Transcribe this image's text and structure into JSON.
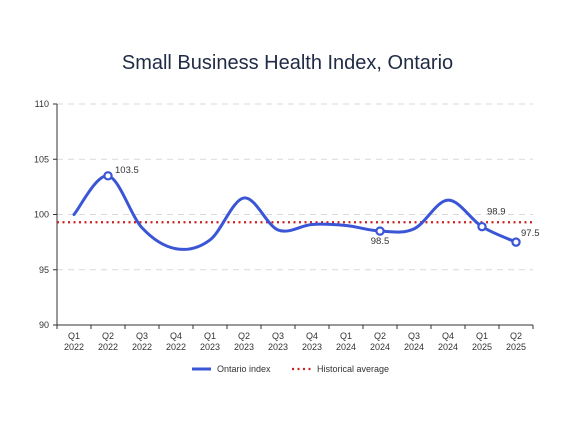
{
  "chart_data": {
    "type": "line",
    "title": "Small Business Health Index, Ontario",
    "xlabel": "",
    "ylabel": "",
    "categories": [
      [
        "Q1",
        "2022"
      ],
      [
        "Q2",
        "2022"
      ],
      [
        "Q3",
        "2022"
      ],
      [
        "Q4",
        "2022"
      ],
      [
        "Q1",
        "2023"
      ],
      [
        "Q2",
        "2023"
      ],
      [
        "Q3",
        "2023"
      ],
      [
        "Q4",
        "2023"
      ],
      [
        "Q1",
        "2024"
      ],
      [
        "Q2",
        "2024"
      ],
      [
        "Q3",
        "2024"
      ],
      [
        "Q4",
        "2024"
      ],
      [
        "Q1",
        "2025"
      ],
      [
        "Q2",
        "2025"
      ]
    ],
    "series": [
      {
        "name": "Ontario index",
        "color": "#3a55d6",
        "values": [
          100.0,
          103.5,
          98.8,
          96.9,
          97.7,
          101.5,
          98.6,
          99.1,
          99.0,
          98.5,
          98.7,
          101.3,
          98.9,
          97.5
        ]
      }
    ],
    "reference_line": {
      "name": "Historical average",
      "value": 99.3,
      "color": "#cc1f1f",
      "style": "dotted"
    },
    "data_labels": [
      {
        "index": 1,
        "text": "103.5"
      },
      {
        "index": 9,
        "text": "98.5"
      },
      {
        "index": 12,
        "text": "98.9"
      },
      {
        "index": 13,
        "text": "97.5"
      }
    ],
    "y_ticks": [
      90,
      95,
      100,
      105,
      110
    ],
    "ylim": [
      90,
      110
    ],
    "grid": true,
    "legend_position": "bottom"
  }
}
